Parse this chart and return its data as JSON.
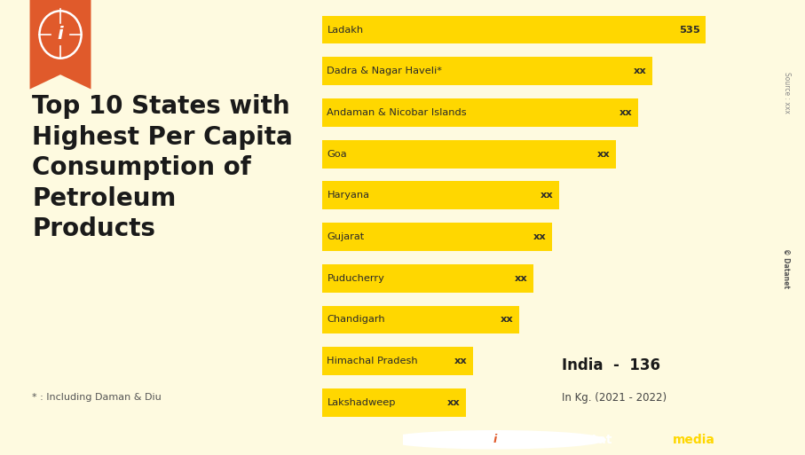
{
  "states": [
    "Ladakh",
    "Dadra & Nagar Haveli*",
    "Andaman & Nicobar Islands",
    "Goa",
    "Haryana",
    "Gujarat",
    "Puducherry",
    "Chandigarh",
    "Himachal Pradesh",
    "Lakshadweep"
  ],
  "values": [
    535,
    460,
    440,
    410,
    330,
    320,
    295,
    275,
    210,
    200
  ],
  "labels": [
    "535",
    "xx",
    "xx",
    "xx",
    "xx",
    "xx",
    "xx",
    "xx",
    "xx",
    "xx"
  ],
  "bar_color": "#FFD700",
  "bg_color": "#FEFAE0",
  "text_color": "#2a2a2a",
  "title_lines": [
    "Top 10 States with",
    "Highest Per Capita",
    "Consumption of",
    "Petroleum",
    "Products"
  ],
  "footnote": "* : Including Daman & Diu",
  "india_label": "India  -  136",
  "unit_label": "In Kg. (2021 - 2022)",
  "accent_color": "#E05A2B",
  "xlim": [
    0,
    600
  ],
  "source_text": "Source : xxx",
  "datanet_text": "© Datanet"
}
